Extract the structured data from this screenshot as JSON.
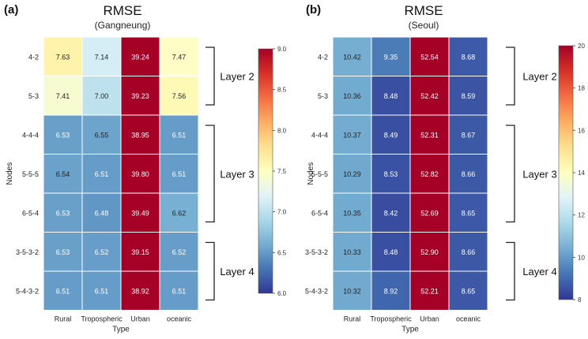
{
  "chart_data": [
    {
      "type": "heatmap",
      "panel_label": "(a)",
      "title": "RMSE",
      "subtitle": "(Gangneung)",
      "xlabel": "Type",
      "ylabel": "Nodes",
      "columns": [
        "Rural",
        "Tropospheric",
        "Urban",
        "oceanic"
      ],
      "rows": [
        "4-2",
        "5-3",
        "4-4-4",
        "5-5-5",
        "6-5-4",
        "3-5-3-2",
        "5-4-3-2"
      ],
      "values": [
        [
          7.63,
          7.14,
          39.24,
          7.47
        ],
        [
          7.41,
          7.0,
          39.23,
          7.56
        ],
        [
          6.53,
          6.55,
          38.95,
          6.51
        ],
        [
          6.54,
          6.51,
          39.8,
          6.51
        ],
        [
          6.53,
          6.48,
          39.49,
          6.62
        ],
        [
          6.53,
          6.52,
          39.15,
          6.52
        ],
        [
          6.51,
          6.51,
          38.92,
          6.51
        ]
      ],
      "value_labels": [
        [
          "7.63",
          "7.14",
          "39.24",
          "7.47"
        ],
        [
          "7.41",
          "7.00",
          "39.23",
          "7.56"
        ],
        [
          "6.53",
          "6.55",
          "38.95",
          "6.51"
        ],
        [
          "6.54",
          "6.51",
          "39.80",
          "6.51"
        ],
        [
          "6.53",
          "6.48",
          "39.49",
          "6.62"
        ],
        [
          "6.53",
          "6.52",
          "39.15",
          "6.52"
        ],
        [
          "6.51",
          "6.51",
          "38.92",
          "6.51"
        ]
      ],
      "color_range": [
        6.0,
        9.0
      ],
      "colorbar_ticks": [
        "9.0",
        "8.5",
        "8.0",
        "7.5",
        "7.0",
        "6.5",
        "6.0"
      ],
      "colorbar_tick_values": [
        9.0,
        8.5,
        8.0,
        7.5,
        7.0,
        6.5,
        6.0
      ],
      "colormap": "RdYlBu_r",
      "layer_groups": [
        {
          "label": "Layer 2",
          "rows": [
            0,
            1
          ]
        },
        {
          "label": "Layer 3",
          "rows": [
            2,
            4
          ]
        },
        {
          "label": "Layer 4",
          "rows": [
            5,
            6
          ]
        }
      ]
    },
    {
      "type": "heatmap",
      "panel_label": "(b)",
      "title": "RMSE",
      "subtitle": "(Seoul)",
      "xlabel": "Type",
      "ylabel": "Nodes",
      "columns": [
        "Rural",
        "Tropospheric",
        "Urban",
        "oceanic"
      ],
      "rows": [
        "4-2",
        "5-3",
        "4-4-4",
        "5-5-5",
        "6-5-4",
        "3-5-3-2",
        "5-4-3-2"
      ],
      "values": [
        [
          10.42,
          9.35,
          52.54,
          8.68
        ],
        [
          10.36,
          8.48,
          52.42,
          8.59
        ],
        [
          10.37,
          8.49,
          52.31,
          8.67
        ],
        [
          10.29,
          8.53,
          52.82,
          8.66
        ],
        [
          10.35,
          8.42,
          52.69,
          8.65
        ],
        [
          10.33,
          8.48,
          52.9,
          8.66
        ],
        [
          10.32,
          8.92,
          52.21,
          8.65
        ]
      ],
      "value_labels": [
        [
          "10.42",
          "9.35",
          "52.54",
          "8.68"
        ],
        [
          "10.36",
          "8.48",
          "52.42",
          "8.59"
        ],
        [
          "10.37",
          "8.49",
          "52.31",
          "8.67"
        ],
        [
          "10.29",
          "8.53",
          "52.82",
          "8.66"
        ],
        [
          "10.35",
          "8.42",
          "52.69",
          "8.65"
        ],
        [
          "10.33",
          "8.48",
          "52.90",
          "8.66"
        ],
        [
          "10.32",
          "8.92",
          "52.21",
          "8.65"
        ]
      ],
      "color_range": [
        8,
        20
      ],
      "colorbar_ticks": [
        "20",
        "18",
        "16",
        "14",
        "12",
        "10",
        "8"
      ],
      "colorbar_tick_values": [
        20,
        18,
        16,
        14,
        12,
        10,
        8
      ],
      "colormap": "RdYlBu_r",
      "layer_groups": [
        {
          "label": "Layer 2",
          "rows": [
            0,
            1
          ]
        },
        {
          "label": "Layer 3",
          "rows": [
            2,
            4
          ]
        },
        {
          "label": "Layer 4",
          "rows": [
            5,
            6
          ]
        }
      ]
    }
  ]
}
